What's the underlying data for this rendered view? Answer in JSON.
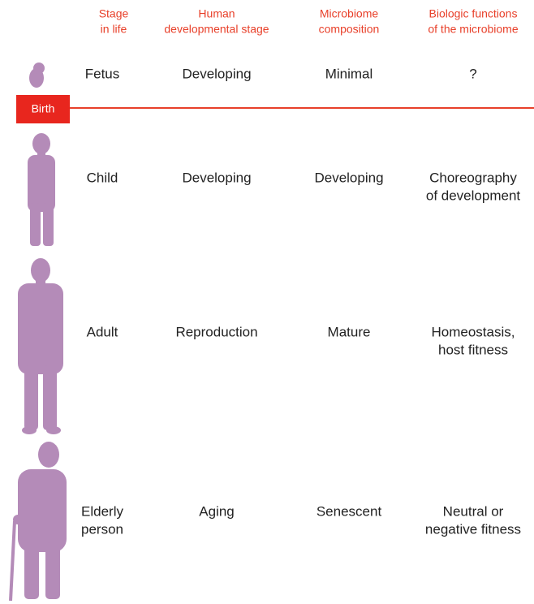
{
  "columns": [
    [
      "Stage",
      "in life"
    ],
    [
      "Human",
      "developmental stage"
    ],
    [
      "Microbiome",
      "composition"
    ],
    [
      "Biologic functions",
      "of the microbiome"
    ]
  ],
  "birth": "Birth",
  "rows": [
    [
      [
        "Fetus"
      ],
      [
        "Developing"
      ],
      [
        "Minimal"
      ],
      [
        "?"
      ]
    ],
    [
      [
        "Child"
      ],
      [
        "Developing"
      ],
      [
        "Developing"
      ],
      [
        "Choreography",
        "of development"
      ]
    ],
    [
      [
        "Adult"
      ],
      [
        "Reproduction"
      ],
      [
        "Mature"
      ],
      [
        "Homeostasis,",
        "host fitness"
      ]
    ],
    [
      [
        "Elderly",
        "person"
      ],
      [
        "Aging"
      ],
      [
        "Senescent"
      ],
      [
        "Neutral or",
        "negative fitness"
      ]
    ]
  ]
}
